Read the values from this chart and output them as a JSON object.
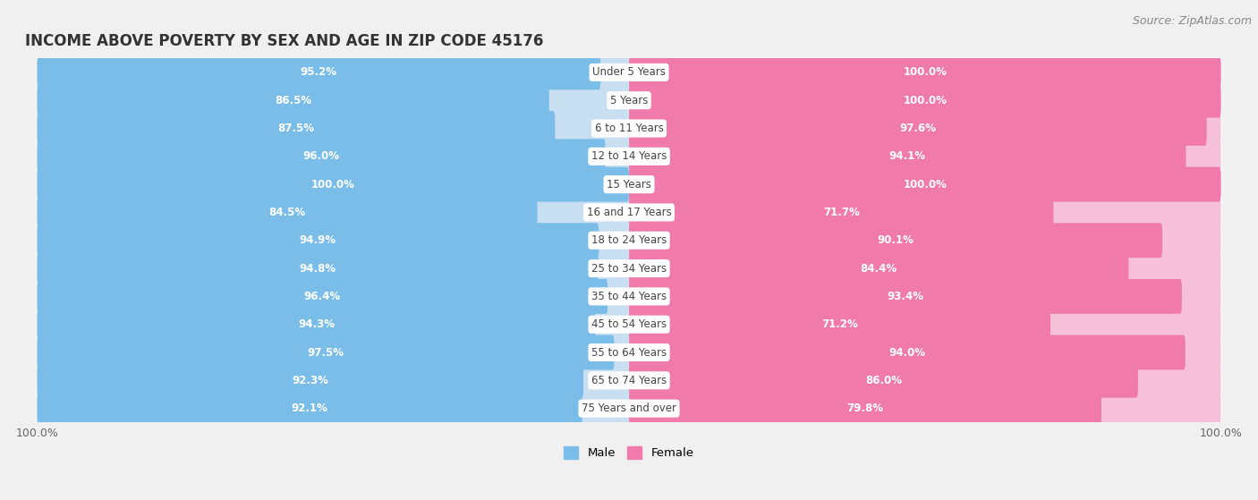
{
  "title": "INCOME ABOVE POVERTY BY SEX AND AGE IN ZIP CODE 45176",
  "source": "Source: ZipAtlas.com",
  "categories": [
    "Under 5 Years",
    "5 Years",
    "6 to 11 Years",
    "12 to 14 Years",
    "15 Years",
    "16 and 17 Years",
    "18 to 24 Years",
    "25 to 34 Years",
    "35 to 44 Years",
    "45 to 54 Years",
    "55 to 64 Years",
    "65 to 74 Years",
    "75 Years and over"
  ],
  "male_values": [
    95.2,
    86.5,
    87.5,
    96.0,
    100.0,
    84.5,
    94.9,
    94.8,
    96.4,
    94.3,
    97.5,
    92.3,
    92.1
  ],
  "female_values": [
    100.0,
    100.0,
    97.6,
    94.1,
    100.0,
    71.7,
    90.1,
    84.4,
    93.4,
    71.2,
    94.0,
    86.0,
    79.8
  ],
  "male_color": "#7abde8",
  "male_light_color": "#c8dff2",
  "female_color": "#f07aaa",
  "female_light_color": "#f5c0d8",
  "bg_color": "#f0f0f0",
  "row_bg": "#ffffff",
  "x_max": 100.0,
  "bar_height": 0.62,
  "title_fontsize": 12,
  "label_fontsize": 8.5,
  "tick_fontsize": 9,
  "source_fontsize": 9,
  "value_fontsize": 8.5
}
